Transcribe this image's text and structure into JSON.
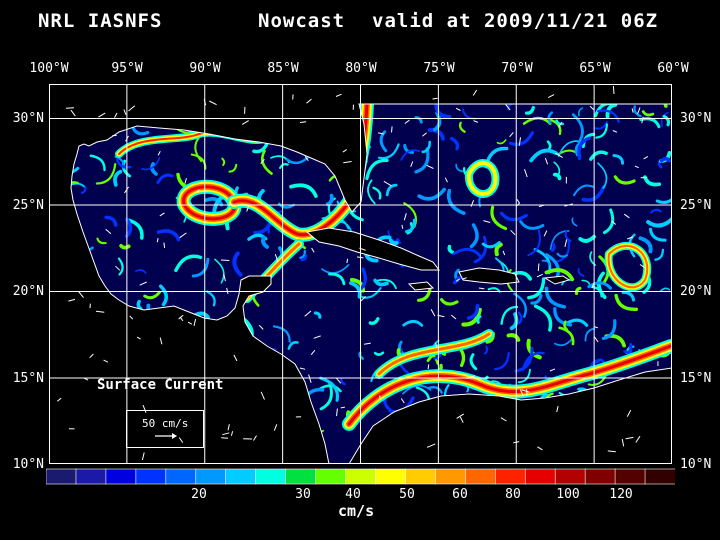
{
  "title": {
    "model": "NRL IASNFS",
    "product": "Nowcast",
    "valid": "valid at 2009/11/21 06Z"
  },
  "map": {
    "lon_labels": [
      "100°W",
      "95°W",
      "90°W",
      "85°W",
      "80°W",
      "75°W",
      "70°W",
      "65°W",
      "60°W"
    ],
    "lat_labels": [
      "30°N",
      "25°N",
      "20°N",
      "15°N",
      "10°N"
    ],
    "ocean_color": "#00004e",
    "land_color": "#000000",
    "coastline_color": "#ffffff"
  },
  "legend": {
    "variable": "Surface Current",
    "reference_vector": "50 cm/s",
    "reference_icon": "arrow-icon",
    "colorbar_labels": [
      "20",
      "30",
      "40",
      "50",
      "60",
      "80",
      "100",
      "120"
    ],
    "units": "cm/s",
    "colorbar_colors": [
      "#1a1a6e",
      "#1a1aa6",
      "#0000e0",
      "#0033ff",
      "#0066ff",
      "#0099ff",
      "#00ccff",
      "#00ffe0",
      "#00e040",
      "#66ff00",
      "#ccff00",
      "#ffff00",
      "#ffcc00",
      "#ff9900",
      "#ff6600",
      "#ff2200",
      "#e60000",
      "#b30000",
      "#800000",
      "#550000",
      "#330000"
    ]
  }
}
